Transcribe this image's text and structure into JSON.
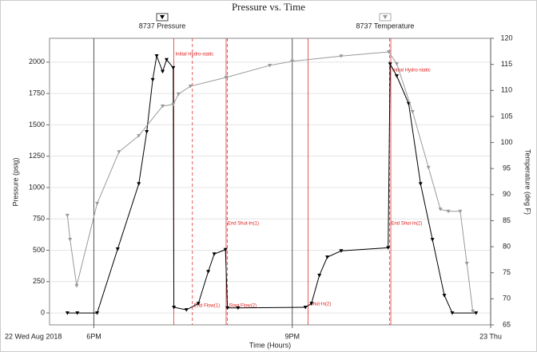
{
  "chart_data": {
    "type": "line",
    "title": "Pressure vs. Time",
    "x_label": "Time (Hours)",
    "y_label": "Pressure (psig)",
    "y2_label": "Temperature (deg F)",
    "date_label": "22 Wed Aug 2018",
    "xlim": [
      17.33,
      24
    ],
    "xticks": [
      {
        "value": 18,
        "label": "6PM"
      },
      {
        "value": 21,
        "label": "9PM"
      },
      {
        "value": 24,
        "label": "23 Thu"
      }
    ],
    "ylim": [
      -95,
      2190
    ],
    "yticks": [
      0,
      250,
      500,
      750,
      1000,
      1250,
      1500,
      1750,
      2000
    ],
    "y2lim": [
      65,
      120
    ],
    "y2ticks": [
      65,
      70,
      75,
      80,
      85,
      90,
      95,
      100,
      105,
      110,
      115,
      120
    ],
    "grid": true,
    "series": [
      {
        "name": "8737 Pressure",
        "color": "#000000",
        "x": [
          17.6,
          17.75,
          18.05,
          18.36,
          18.68,
          18.8,
          18.89,
          18.95,
          19.04,
          19.1,
          19.2,
          19.21,
          19.4,
          19.58,
          19.73,
          19.82,
          19.99,
          20.02,
          20.18,
          21.2,
          21.29,
          21.41,
          21.53,
          21.74,
          22.45,
          22.48,
          22.58,
          22.76,
          22.94,
          23.12,
          23.3,
          23.42,
          23.78
        ],
        "values": [
          0,
          0,
          0,
          510,
          1030,
          1445,
          1860,
          2050,
          1925,
          2020,
          1955,
          45,
          25,
          75,
          330,
          470,
          505,
          40,
          40,
          45,
          75,
          300,
          445,
          495,
          520,
          1985,
          1890,
          1670,
          1030,
          585,
          140,
          0,
          0
        ]
      },
      {
        "name": "8737 Temperature",
        "color": "#999999",
        "axis": "y2",
        "x": [
          17.6,
          17.64,
          17.74,
          18.05,
          18.38,
          18.68,
          19.04,
          19.2,
          19.28,
          19.46,
          20.0,
          20.66,
          21.0,
          21.74,
          22.46,
          22.58,
          22.82,
          23.06,
          23.24,
          23.36,
          23.54,
          23.64,
          23.73
        ],
        "values": [
          86.0,
          81.4,
          72.5,
          88.3,
          98.2,
          101.3,
          107.0,
          107.3,
          109.3,
          110.8,
          112.5,
          114.8,
          115.6,
          116.6,
          117.4,
          115.1,
          105.9,
          95.2,
          87.2,
          86.8,
          86.8,
          76.8,
          67.6
        ]
      }
    ],
    "annotations": [
      {
        "x": 19.21,
        "label": "Initial Hydro-static"
      },
      {
        "x": 19.49,
        "label": "End Flow(1)"
      },
      {
        "x": 20.0,
        "label": "End Shut-In(1)"
      },
      {
        "x": 20.02,
        "label": "Start Flow(2)"
      },
      {
        "x": 21.24,
        "label": "Shut-In(2)"
      },
      {
        "x": 22.47,
        "label": "End Shut-In(2)"
      },
      {
        "x": 22.49,
        "label": "Initial Hydro-static"
      }
    ]
  }
}
